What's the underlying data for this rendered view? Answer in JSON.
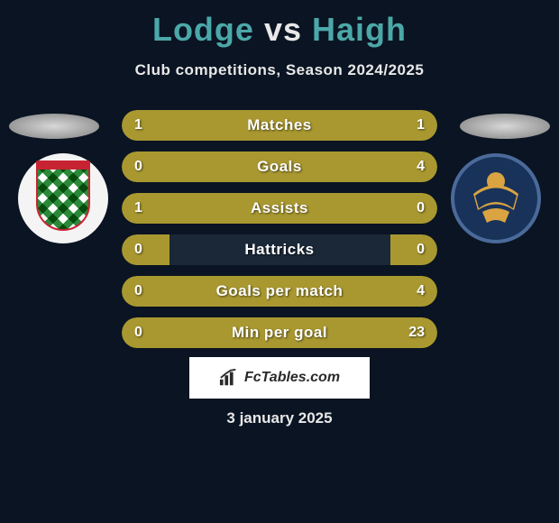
{
  "title": {
    "player1": "Lodge",
    "vs": "vs",
    "player2": "Haigh"
  },
  "subtitle": "Club competitions, Season 2024/2025",
  "date": "3 january 2025",
  "fctables_text": "FcTables.com",
  "colors": {
    "background": "#0a1422",
    "accent_teal": "#4ca8a8",
    "bar_fill": "#a99830",
    "bar_bg": "#1a2838",
    "text_white": "#e8e8e8"
  },
  "bars": [
    {
      "label": "Matches",
      "left": "1",
      "right": "1",
      "left_pct": 50,
      "right_pct": 50
    },
    {
      "label": "Goals",
      "left": "0",
      "right": "4",
      "left_pct": 18,
      "right_pct": 82
    },
    {
      "label": "Assists",
      "left": "1",
      "right": "0",
      "left_pct": 85,
      "right_pct": 15
    },
    {
      "label": "Hattricks",
      "left": "0",
      "right": "0",
      "left_pct": 15,
      "right_pct": 15
    },
    {
      "label": "Goals per match",
      "left": "0",
      "right": "4",
      "left_pct": 18,
      "right_pct": 82
    },
    {
      "label": "Min per goal",
      "left": "0",
      "right": "23",
      "left_pct": 18,
      "right_pct": 82
    }
  ]
}
